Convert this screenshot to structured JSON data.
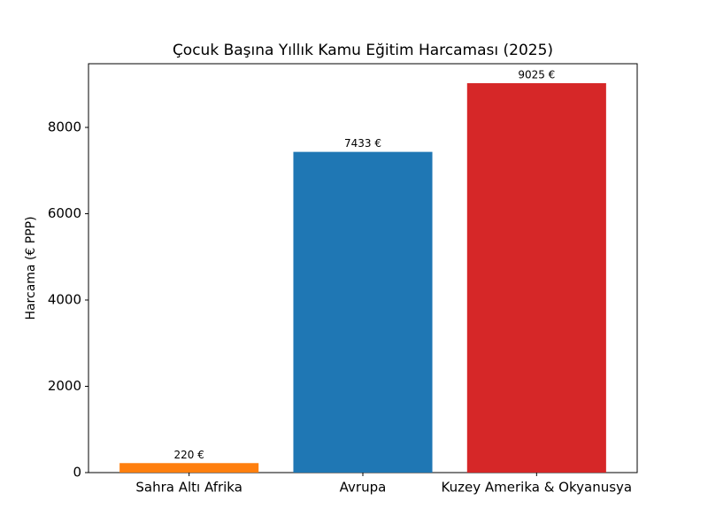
{
  "chart_data": {
    "type": "bar",
    "title": "Çocuk Başına Yıllık Kamu Eğitim Harcaması (2025)",
    "ylabel": "Harcama (€ PPP)",
    "categories": [
      "Sahra Altı Afrika",
      "Avrupa",
      "Kuzey Amerika & Okyanusya"
    ],
    "values": [
      220,
      7433,
      9025
    ],
    "value_labels": [
      "220 €",
      "7433 €",
      "9025 €"
    ],
    "colors": [
      "#ff7f0e",
      "#1f77b4",
      "#d62728"
    ],
    "ylim": [
      0,
      9476.25
    ],
    "yticks": [
      0,
      2000,
      4000,
      6000,
      8000
    ],
    "grid": false
  }
}
